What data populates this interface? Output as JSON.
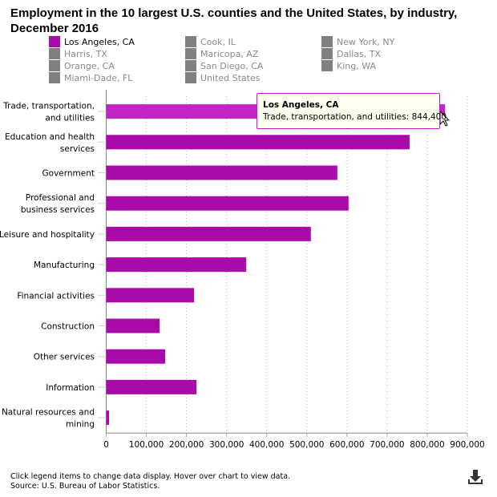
{
  "chart_data": {
    "type": "bar",
    "orientation": "horizontal",
    "title": "Employment in the 10 largest U.S. counties and the United States, by industry, December 2016",
    "categories": [
      "Trade, transportation, and utilities",
      "Education and health services",
      "Government",
      "Professional and business services",
      "Leisure and hospitality",
      "Manufacturing",
      "Financial activities",
      "Construction",
      "Other services",
      "Information",
      "Natural resources and mining"
    ],
    "category_lines": [
      [
        "Trade, transportation,",
        "and utilities"
      ],
      [
        "Education and health",
        "services"
      ],
      [
        "Government"
      ],
      [
        "Professional and",
        "business services"
      ],
      [
        "Leisure and hospitality"
      ],
      [
        "Manufacturing"
      ],
      [
        "Financial activities"
      ],
      [
        "Construction"
      ],
      [
        "Other services"
      ],
      [
        "Information"
      ],
      [
        "Natural resources and",
        "mining"
      ]
    ],
    "series": [
      {
        "name": "Los Angeles, CA",
        "values": [
          844400,
          756000,
          576000,
          604000,
          510000,
          349000,
          219000,
          133000,
          147000,
          225000,
          7000
        ]
      }
    ],
    "xlim": [
      0,
      900000
    ],
    "xticks": [
      "0",
      "100,000",
      "200,000",
      "300,000",
      "400,000",
      "500,000",
      "600,000",
      "700,000",
      "800,000",
      "900,000"
    ],
    "grid": "vertical dotted",
    "legend_placement": "top",
    "colors": {
      "active": "#a90bab",
      "hover": "#c324c5",
      "inactive": "#808080"
    }
  },
  "legend": [
    {
      "label": "Los Angeles, CA",
      "active": true
    },
    {
      "label": "Cook, IL",
      "active": false
    },
    {
      "label": "New York, NY",
      "active": false
    },
    {
      "label": "Harris, TX",
      "active": false
    },
    {
      "label": "Maricopa, AZ",
      "active": false
    },
    {
      "label": "Dallas, TX",
      "active": false
    },
    {
      "label": "Orange, CA",
      "active": false
    },
    {
      "label": "San Diego, CA",
      "active": false
    },
    {
      "label": "King, WA",
      "active": false
    },
    {
      "label": "Miami-Dade, FL",
      "active": false
    },
    {
      "label": "United States",
      "active": false
    }
  ],
  "tooltip": {
    "title": "Los Angeles, CA",
    "body": "Trade, transportation, and utilities: 844,400"
  },
  "footer": {
    "line1": "Click legend items to change data display. Hover over chart to view data.",
    "line2": "Source: U.S. Bureau of Labor Statistics."
  },
  "icons": {
    "download": "download-icon"
  }
}
